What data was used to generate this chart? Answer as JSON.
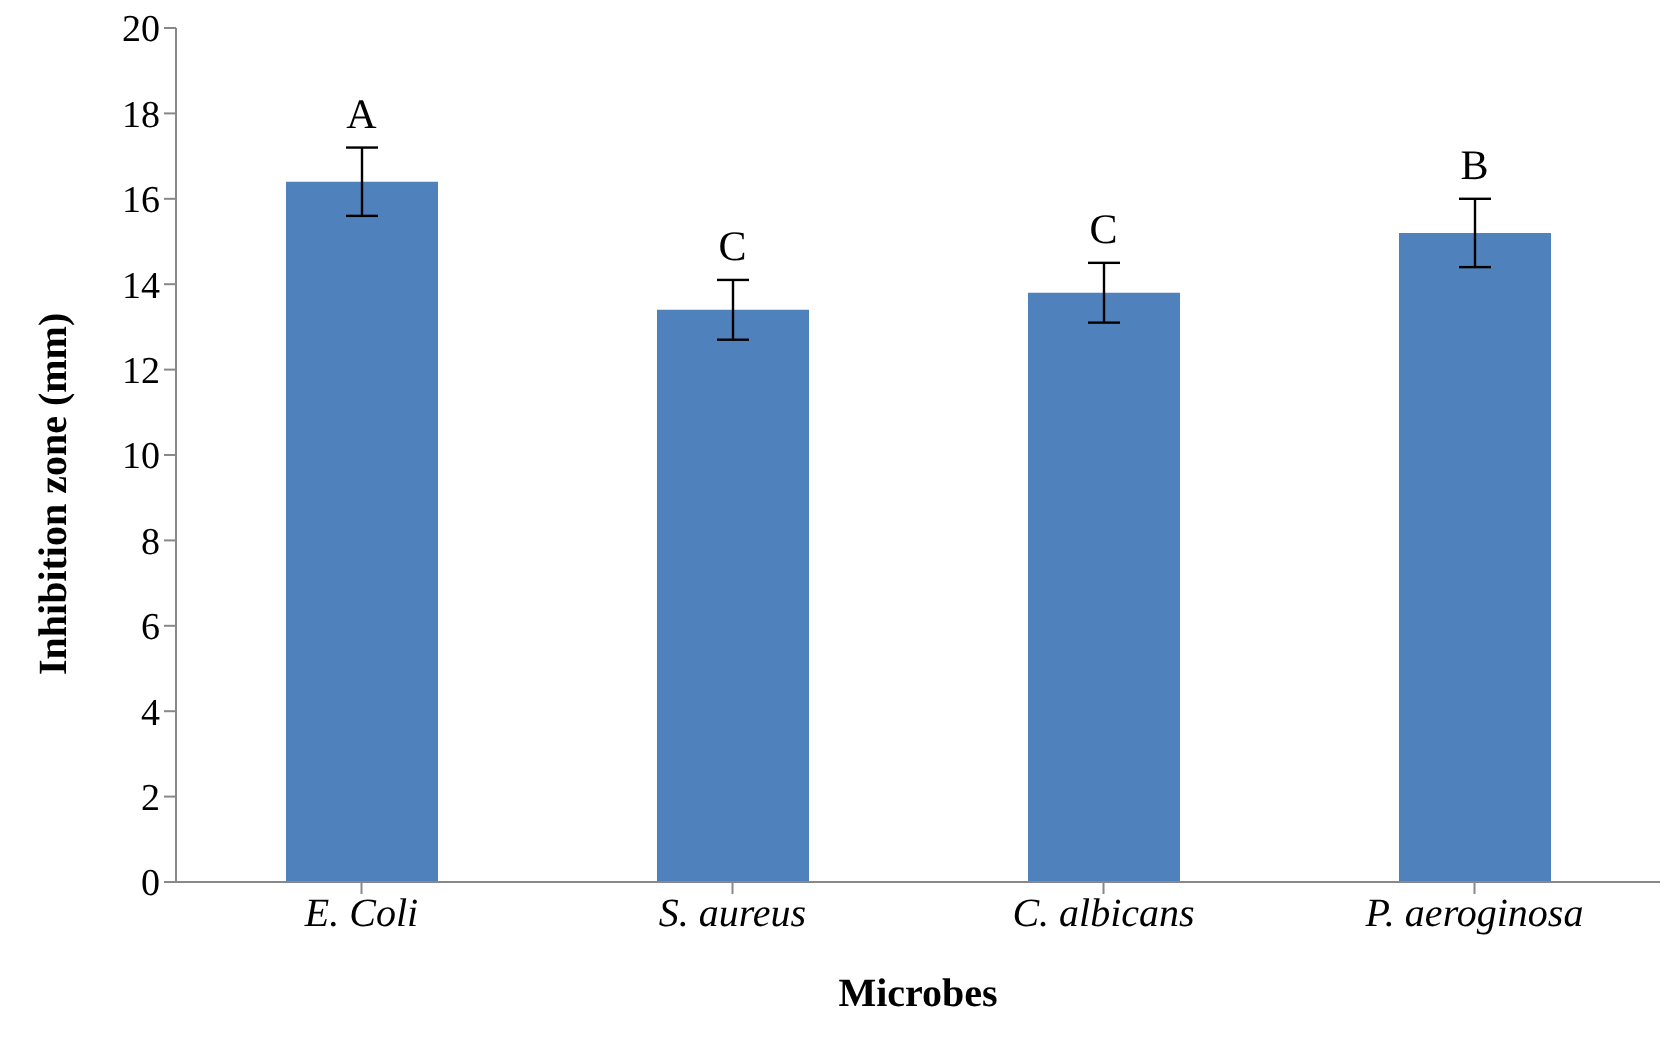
{
  "chart_data": {
    "type": "bar",
    "xlabel": "Microbes",
    "ylabel": "Inhibition  zone (mm)",
    "categories": [
      "E. Coli",
      "S. aureus",
      "C. albicans",
      "P. aeroginosa"
    ],
    "values": [
      16.4,
      13.4,
      13.8,
      15.2
    ],
    "errors": [
      0.8,
      0.7,
      0.7,
      0.8
    ],
    "color": "#4f81bd",
    "ylim": [
      0,
      20
    ],
    "yticks": [
      0,
      2,
      4,
      6,
      8,
      10,
      12,
      14,
      16,
      18,
      20
    ],
    "grid": false,
    "legend": false,
    "annotations": [
      {
        "text": "A",
        "x": "E. Coli",
        "y": 17.2
      },
      {
        "text": "C",
        "x": "S. aureus",
        "y": 14.1
      },
      {
        "text": "C",
        "x": "C. albicans",
        "y": 14.5
      },
      {
        "text": "B",
        "x": "P. aeroginosa",
        "y": 16.0
      }
    ]
  }
}
